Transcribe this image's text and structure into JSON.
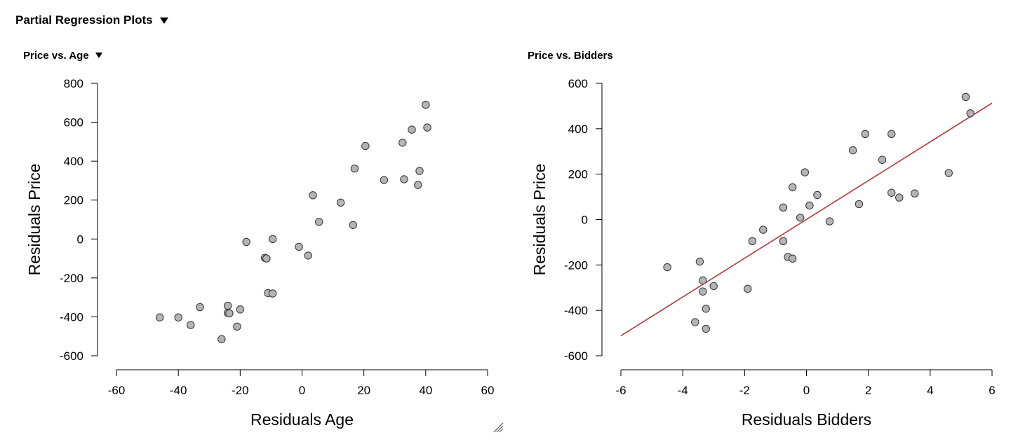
{
  "section": {
    "title": "Partial Regression Plots"
  },
  "colors": {
    "point_fill": "#b4b4b4",
    "point_stroke": "#333333",
    "fit_line": "#b03a3a",
    "axis": "#000000"
  },
  "chart_data": [
    {
      "type": "scatter",
      "title": "Price vs. Age",
      "xlabel": "Residuals Age",
      "ylabel": "Residuals Price",
      "xlim": [
        -60,
        60
      ],
      "ylim": [
        -600,
        800
      ],
      "xticks": [
        -60,
        -40,
        -20,
        0,
        20,
        40,
        60
      ],
      "yticks": [
        -600,
        -400,
        -200,
        0,
        200,
        400,
        600,
        800
      ],
      "grid": false,
      "fit_line": null,
      "points": [
        {
          "x": -46,
          "y": -403
        },
        {
          "x": -40,
          "y": -403
        },
        {
          "x": -36,
          "y": -442
        },
        {
          "x": -33,
          "y": -350
        },
        {
          "x": -26,
          "y": -515
        },
        {
          "x": -24,
          "y": -343
        },
        {
          "x": -24,
          "y": -380
        },
        {
          "x": -23.5,
          "y": -382
        },
        {
          "x": -21,
          "y": -450
        },
        {
          "x": -20,
          "y": -362
        },
        {
          "x": -18,
          "y": -15
        },
        {
          "x": -12,
          "y": -97
        },
        {
          "x": -11.5,
          "y": -100
        },
        {
          "x": -11,
          "y": -278
        },
        {
          "x": -9.5,
          "y": -280
        },
        {
          "x": -9.5,
          "y": 0
        },
        {
          "x": -1,
          "y": -40
        },
        {
          "x": 2,
          "y": -85
        },
        {
          "x": 3.5,
          "y": 225
        },
        {
          "x": 5.5,
          "y": 88
        },
        {
          "x": 12.5,
          "y": 187
        },
        {
          "x": 16.5,
          "y": 72
        },
        {
          "x": 17,
          "y": 362
        },
        {
          "x": 20.5,
          "y": 478
        },
        {
          "x": 26.5,
          "y": 303
        },
        {
          "x": 32.5,
          "y": 495
        },
        {
          "x": 33,
          "y": 307
        },
        {
          "x": 35.5,
          "y": 562
        },
        {
          "x": 37.5,
          "y": 278
        },
        {
          "x": 38,
          "y": 350
        },
        {
          "x": 40,
          "y": 690
        },
        {
          "x": 40.5,
          "y": 573
        }
      ]
    },
    {
      "type": "scatter",
      "title": "Price vs. Bidders",
      "xlabel": "Residuals Bidders",
      "ylabel": "Residuals Price",
      "xlim": [
        -6,
        6
      ],
      "ylim": [
        -600,
        600
      ],
      "xticks": [
        -6,
        -4,
        -2,
        0,
        2,
        4,
        6
      ],
      "yticks": [
        -600,
        -400,
        -200,
        0,
        200,
        400,
        600
      ],
      "grid": false,
      "fit_line": {
        "x": [
          -6,
          6
        ],
        "y": [
          -512,
          513
        ]
      },
      "points": [
        {
          "x": -4.5,
          "y": -210
        },
        {
          "x": -3.6,
          "y": -452
        },
        {
          "x": -3.45,
          "y": -185
        },
        {
          "x": -3.35,
          "y": -268
        },
        {
          "x": -3.35,
          "y": -317
        },
        {
          "x": -3.25,
          "y": -393
        },
        {
          "x": -3.25,
          "y": -481
        },
        {
          "x": -3.0,
          "y": -293
        },
        {
          "x": -1.9,
          "y": -305
        },
        {
          "x": -1.75,
          "y": -95
        },
        {
          "x": -1.4,
          "y": -45
        },
        {
          "x": -0.75,
          "y": 53
        },
        {
          "x": -0.75,
          "y": -95
        },
        {
          "x": -0.6,
          "y": -165
        },
        {
          "x": -0.45,
          "y": -172
        },
        {
          "x": -0.45,
          "y": 142
        },
        {
          "x": -0.2,
          "y": 8
        },
        {
          "x": -0.05,
          "y": 208
        },
        {
          "x": 0.1,
          "y": 62
        },
        {
          "x": 0.35,
          "y": 108
        },
        {
          "x": 0.75,
          "y": -8
        },
        {
          "x": 1.5,
          "y": 305
        },
        {
          "x": 1.7,
          "y": 68
        },
        {
          "x": 1.9,
          "y": 377
        },
        {
          "x": 2.45,
          "y": 263
        },
        {
          "x": 2.75,
          "y": 377
        },
        {
          "x": 2.75,
          "y": 118
        },
        {
          "x": 3.0,
          "y": 97
        },
        {
          "x": 3.5,
          "y": 115
        },
        {
          "x": 4.6,
          "y": 205
        },
        {
          "x": 5.15,
          "y": 540
        },
        {
          "x": 5.3,
          "y": 468
        }
      ]
    }
  ]
}
